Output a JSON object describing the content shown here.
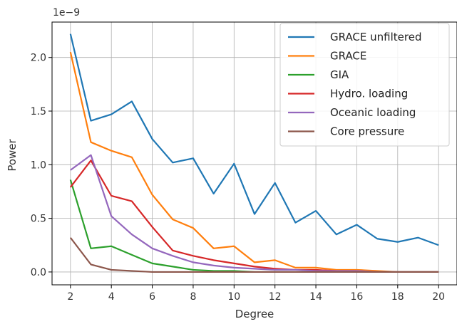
{
  "chart_data": {
    "type": "line",
    "title": "",
    "xlabel": "Degree",
    "ylabel": "Power",
    "y_offset_label": "1e−9",
    "x": [
      2,
      3,
      4,
      5,
      6,
      7,
      8,
      9,
      10,
      11,
      12,
      13,
      14,
      15,
      16,
      17,
      18,
      19,
      20
    ],
    "xlim": [
      1.1,
      20.9
    ],
    "ylim": [
      -0.12,
      2.33
    ],
    "x_ticks": [
      2,
      4,
      6,
      8,
      10,
      12,
      14,
      16,
      18,
      20
    ],
    "y_ticks": [
      0.0,
      0.5,
      1.0,
      1.5,
      2.0
    ],
    "x_tick_labels": [
      "2",
      "4",
      "6",
      "8",
      "10",
      "12",
      "14",
      "16",
      "18",
      "20"
    ],
    "y_tick_labels": [
      "0.0",
      "0.5",
      "1.0",
      "1.5",
      "2.0"
    ],
    "grid": true,
    "legend_position": "top-right",
    "series": [
      {
        "name": "GRACE unfiltered",
        "color": "#1f77b4",
        "values": [
          2.22,
          1.41,
          1.47,
          1.59,
          1.24,
          1.02,
          1.06,
          0.73,
          1.01,
          0.54,
          0.83,
          0.46,
          0.57,
          0.35,
          0.44,
          0.31,
          0.28,
          0.32,
          0.25
        ]
      },
      {
        "name": "GRACE",
        "color": "#ff7f0e",
        "values": [
          2.05,
          1.21,
          1.13,
          1.07,
          0.72,
          0.49,
          0.41,
          0.22,
          0.24,
          0.09,
          0.11,
          0.04,
          0.04,
          0.02,
          0.02,
          0.01,
          0.0,
          0.0,
          0.0
        ]
      },
      {
        "name": "GIA",
        "color": "#2ca02c",
        "values": [
          0.86,
          0.22,
          0.24,
          0.16,
          0.08,
          0.05,
          0.02,
          0.01,
          0.01,
          0.0,
          0.0,
          0.0,
          0.0,
          0.0,
          0.0,
          0.0,
          0.0,
          0.0,
          0.0
        ]
      },
      {
        "name": "Hydro. loading",
        "color": "#d62728",
        "values": [
          0.79,
          1.04,
          0.71,
          0.66,
          0.42,
          0.2,
          0.15,
          0.11,
          0.08,
          0.05,
          0.03,
          0.02,
          0.02,
          0.01,
          0.01,
          0.0,
          0.0,
          0.0,
          0.0
        ]
      },
      {
        "name": "Oceanic loading",
        "color": "#9467bd",
        "values": [
          0.95,
          1.09,
          0.52,
          0.35,
          0.22,
          0.15,
          0.09,
          0.06,
          0.04,
          0.03,
          0.02,
          0.02,
          0.01,
          0.01,
          0.01,
          0.0,
          0.0,
          0.0,
          0.0
        ]
      },
      {
        "name": "Core pressure",
        "color": "#8c564b",
        "values": [
          0.32,
          0.07,
          0.02,
          0.01,
          0.0,
          0.0,
          0.0,
          0.0,
          0.0,
          0.0,
          0.0,
          0.0,
          0.0,
          0.0,
          0.0,
          0.0,
          0.0,
          0.0,
          0.0
        ]
      }
    ]
  }
}
